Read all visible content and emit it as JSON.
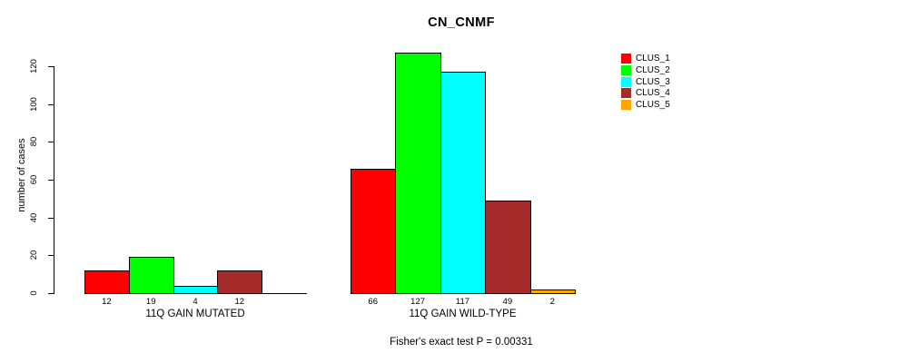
{
  "title": "CN_CNMF",
  "subtitle": "Fisher's exact test P = 0.00331",
  "chart_data": {
    "type": "bar",
    "title": "CN_CNMF",
    "ylabel": "number of cases",
    "xlabel": "",
    "ylim": [
      0,
      120
    ],
    "yticks": [
      0,
      20,
      40,
      60,
      80,
      100,
      120
    ],
    "grid": false,
    "legend_position": "right",
    "categories": [
      "11Q GAIN MUTATED",
      "11Q GAIN WILD-TYPE"
    ],
    "series": [
      {
        "name": "CLUS_1",
        "color": "#FF0000",
        "values": [
          12,
          66
        ]
      },
      {
        "name": "CLUS_2",
        "color": "#00FF00",
        "values": [
          19,
          127
        ]
      },
      {
        "name": "CLUS_3",
        "color": "#00FFFF",
        "values": [
          4,
          117
        ]
      },
      {
        "name": "CLUS_4",
        "color": "#A52A2A",
        "values": [
          12,
          49
        ]
      },
      {
        "name": "CLUS_5",
        "color": "#FFA500",
        "values": [
          0,
          2
        ]
      }
    ],
    "bar_value_labels": {
      "11Q GAIN MUTATED": [
        12,
        19,
        4,
        12
      ],
      "11Q GAIN WILD-TYPE": [
        66,
        127,
        117,
        49,
        2
      ]
    },
    "annotation": "Fisher's exact test P = 0.00331"
  }
}
